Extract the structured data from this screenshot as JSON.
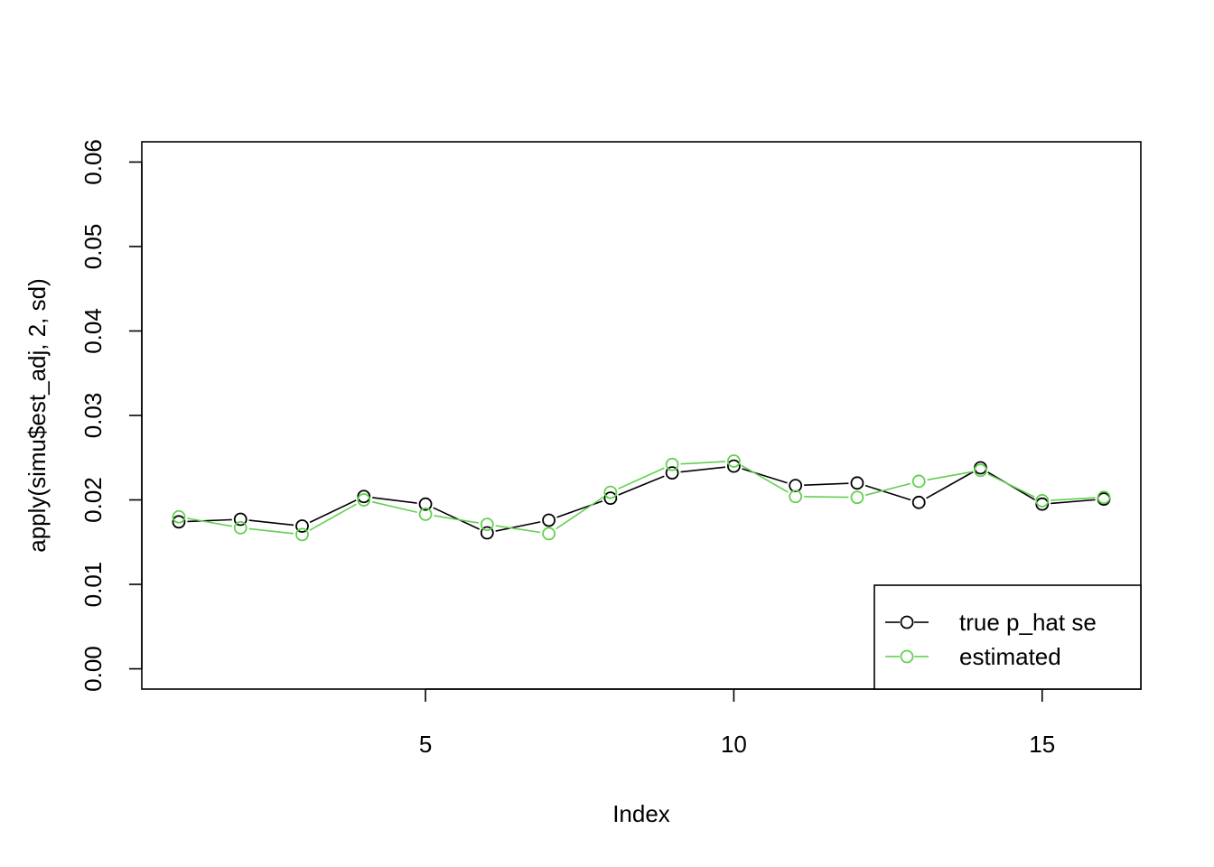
{
  "chart_data": {
    "type": "line",
    "title": "",
    "xlabel": "Index",
    "ylabel": "apply(simu$est_adj, 2, sd)",
    "xlim": [
      0.4,
      16.6
    ],
    "ylim": [
      -0.0024,
      0.0624
    ],
    "x_ticks": [
      5,
      10,
      15
    ],
    "x_tick_labels": [
      "5",
      "10",
      "15"
    ],
    "y_ticks": [
      0,
      0.01,
      0.02,
      0.03,
      0.04,
      0.05,
      0.06
    ],
    "y_tick_labels": [
      "0.00",
      "0.01",
      "0.02",
      "0.03",
      "0.04",
      "0.05",
      "0.06"
    ],
    "grid": false,
    "legend_position": "bottom-right",
    "x": [
      1,
      2,
      3,
      4,
      5,
      6,
      7,
      8,
      9,
      10,
      11,
      12,
      13,
      14,
      15,
      16
    ],
    "series": [
      {
        "name": "true p_hat se",
        "color": "#000000",
        "marker": "circle-open",
        "values": [
          0.0174,
          0.0177,
          0.0169,
          0.0204,
          0.0195,
          0.0161,
          0.0176,
          0.0202,
          0.0232,
          0.024,
          0.0217,
          0.022,
          0.0197,
          0.0238,
          0.0195,
          0.0201
        ]
      },
      {
        "name": "estimated",
        "color": "#61D04F",
        "marker": "circle-open",
        "values": [
          0.018,
          0.0167,
          0.0159,
          0.02,
          0.0183,
          0.0171,
          0.016,
          0.0209,
          0.0242,
          0.0246,
          0.0204,
          0.0203,
          0.0222,
          0.0235,
          0.0199,
          0.0203
        ]
      }
    ]
  }
}
